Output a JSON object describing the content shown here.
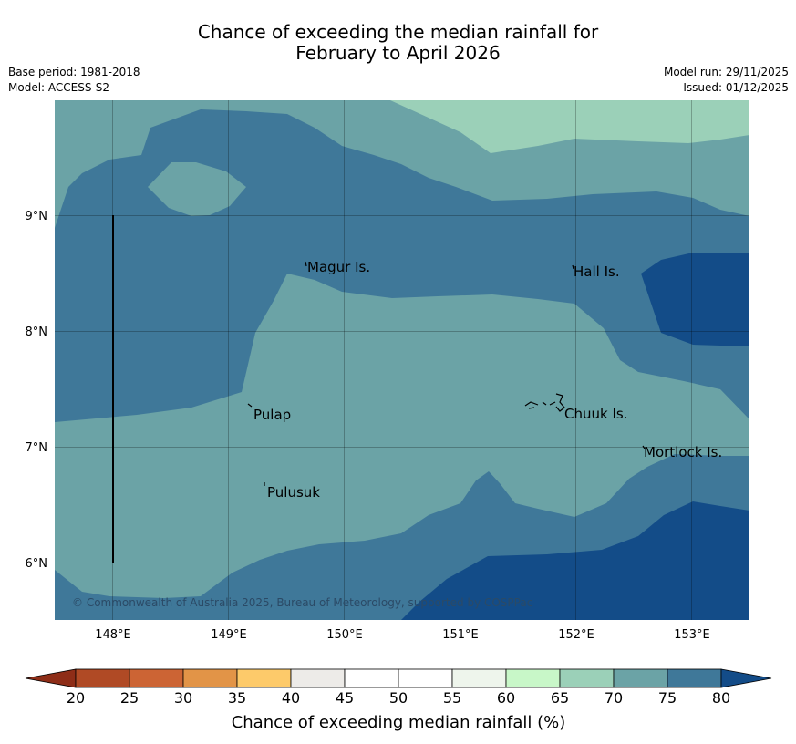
{
  "header": {
    "title_line1": "Chance of exceeding the median rainfall for",
    "title_line2": "February to April 2026",
    "base_period": "Base period: 1981-2018",
    "model": "Model: ACCESS-S2",
    "model_run": "Model run: 29/11/2025",
    "issued": "Issued: 01/12/2025"
  },
  "map": {
    "longitude_ticks": [
      "148°E",
      "149°E",
      "150°E",
      "151°E",
      "152°E",
      "153°E"
    ],
    "latitude_ticks": [
      "9°N",
      "8°N",
      "7°N",
      "6°N"
    ],
    "places": {
      "magur": "Magur Is.",
      "hall": "Hall Is.",
      "pulap": "Pulap",
      "chuuk": "Chuuk Is.",
      "mortlock": "Mortlock Is.",
      "pulusuk": "Pulusuk"
    },
    "copyright": "© Commonwealth of Australia 2025, Bureau of Meteorology, supported by COSPPac"
  },
  "legend": {
    "ticks": [
      "20",
      "25",
      "30",
      "35",
      "40",
      "45",
      "50",
      "55",
      "60",
      "65",
      "70",
      "75",
      "80"
    ],
    "label": "Chance of exceeding median rainfall (%)",
    "colors": {
      "below_20": "#8e2d17",
      "c20_25": "#b04a25",
      "c25_30": "#cc6434",
      "c30_35": "#e29447",
      "c35_40": "#fdca6a",
      "c40_45": "#edebe8",
      "c45_50": "#ffffff",
      "c50_55": "#ffffff",
      "c55_60": "#eef5ec",
      "c60_65": "#c8f7c8",
      "c65_70": "#9bd0b8",
      "c70_75": "#6ba3a6",
      "c75_80": "#3f7899",
      "above_80": "#134c88"
    }
  }
}
